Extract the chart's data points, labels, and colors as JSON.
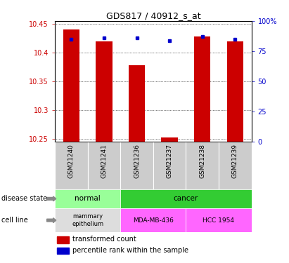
{
  "title": "GDS817 / 40912_s_at",
  "samples": [
    "GSM21240",
    "GSM21241",
    "GSM21236",
    "GSM21237",
    "GSM21238",
    "GSM21239"
  ],
  "transformed_counts": [
    10.44,
    10.419,
    10.378,
    10.252,
    10.428,
    10.419
  ],
  "percentile_ranks": [
    85,
    86,
    86,
    84,
    87,
    85
  ],
  "ylim_left": [
    10.245,
    10.455
  ],
  "ylim_right": [
    0,
    100
  ],
  "yticks_left": [
    10.25,
    10.3,
    10.35,
    10.4,
    10.45
  ],
  "yticks_right": [
    0,
    25,
    50,
    75,
    100
  ],
  "bar_color": "#CC0000",
  "dot_color": "#0000CC",
  "bar_width": 0.5,
  "disease_state_colors": {
    "normal": "#99FF99",
    "cancer": "#33CC33"
  },
  "cell_line_colors": {
    "mammary epithelium": "#DDDDDD",
    "MDA-MB-436": "#FF66FF",
    "HCC 1954": "#FF66FF"
  },
  "legend_items": [
    "transformed count",
    "percentile rank within the sample"
  ],
  "legend_colors": [
    "#CC0000",
    "#0000CC"
  ],
  "tick_label_color_left": "#CC0000",
  "tick_label_color_right": "#0000CC",
  "base_value": 10.245,
  "bg_color": "#FFFFFF",
  "grid_color": "#000000",
  "spine_color": "#000000"
}
